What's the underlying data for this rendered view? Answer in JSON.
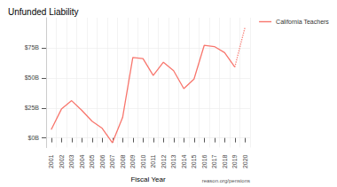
{
  "chart_data": {
    "type": "line",
    "title": "Unfunded Liability",
    "x_label": "Fiscal Year",
    "annotation": "reason.org/pensions",
    "categories": [
      "2001",
      "2002",
      "2003",
      "2004",
      "2005",
      "2006",
      "2007",
      "2008",
      "2009",
      "2010",
      "2011",
      "2012",
      "2013",
      "2014",
      "2015",
      "2016",
      "2017",
      "2018",
      "2019",
      "2020"
    ],
    "series": [
      {
        "name": "California Teachers",
        "color": "#f8766d",
        "line_style": "solid",
        "values": [
          7,
          24,
          31,
          23,
          14,
          8,
          -4,
          17,
          67,
          66,
          52,
          63,
          56,
          41,
          49,
          77,
          76,
          71,
          59,
          null
        ]
      },
      {
        "color": "#f8766d",
        "line_style": "dotted",
        "values": [
          null,
          null,
          null,
          null,
          null,
          null,
          null,
          null,
          null,
          null,
          null,
          null,
          null,
          null,
          null,
          null,
          null,
          null,
          59,
          92
        ]
      }
    ],
    "ylim": [
      -8,
      100
    ],
    "yticks": [
      {
        "value": 0,
        "label": "$0B"
      },
      {
        "value": 25,
        "label": "$25B"
      },
      {
        "value": 50,
        "label": "$50B"
      },
      {
        "value": 75,
        "label": "$75B"
      }
    ],
    "grid": true,
    "legend": "top-right"
  }
}
